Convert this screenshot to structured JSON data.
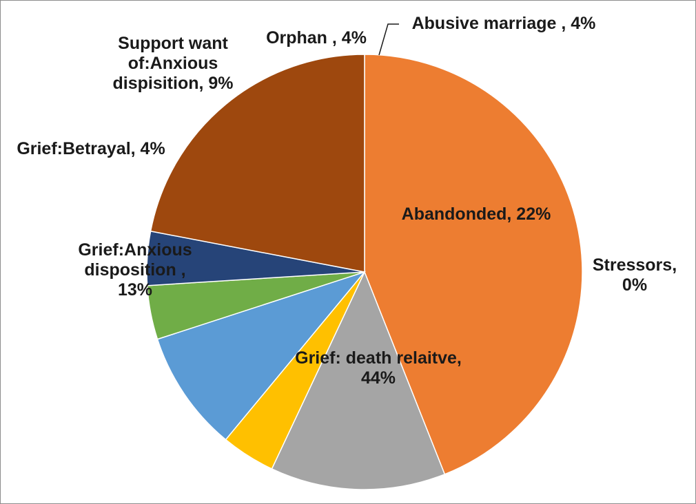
{
  "chart_data": {
    "type": "pie",
    "title": "",
    "legend": "none",
    "start_angle_deg": 90,
    "direction": "clockwise",
    "slices": [
      {
        "name": "Stressors",
        "value": 0,
        "label": [
          "Stressors,",
          "0%"
        ],
        "color": "#4472C4"
      },
      {
        "name": "Grief: death relaitve",
        "value": 44,
        "label": [
          "Grief: death relaitve,",
          "44%"
        ],
        "color": "#ED7D31"
      },
      {
        "name": "Grief:Anxious disposition",
        "value": 13,
        "label": [
          "Grief:Anxious",
          "disposition ,",
          "13%"
        ],
        "color": "#A5A5A5"
      },
      {
        "name": "Grief:Betrayal",
        "value": 4,
        "label": [
          "Grief:Betrayal, 4%"
        ],
        "color": "#FFC000"
      },
      {
        "name": "Support want of:Anxious dispisition",
        "value": 9,
        "label": [
          "Support want",
          "of:Anxious",
          "dispisition, 9%"
        ],
        "color": "#5B9BD5"
      },
      {
        "name": "Orphan",
        "value": 4,
        "label": [
          "Orphan , 4%"
        ],
        "color": "#70AD47"
      },
      {
        "name": "Abusive marriage",
        "value": 4,
        "label": [
          "Abusive marriage , 4%"
        ],
        "color": "#264478"
      },
      {
        "name": "Abandonded",
        "value": 22,
        "label": [
          "Abandonded, 22%"
        ],
        "color": "#9E480E"
      }
    ]
  }
}
